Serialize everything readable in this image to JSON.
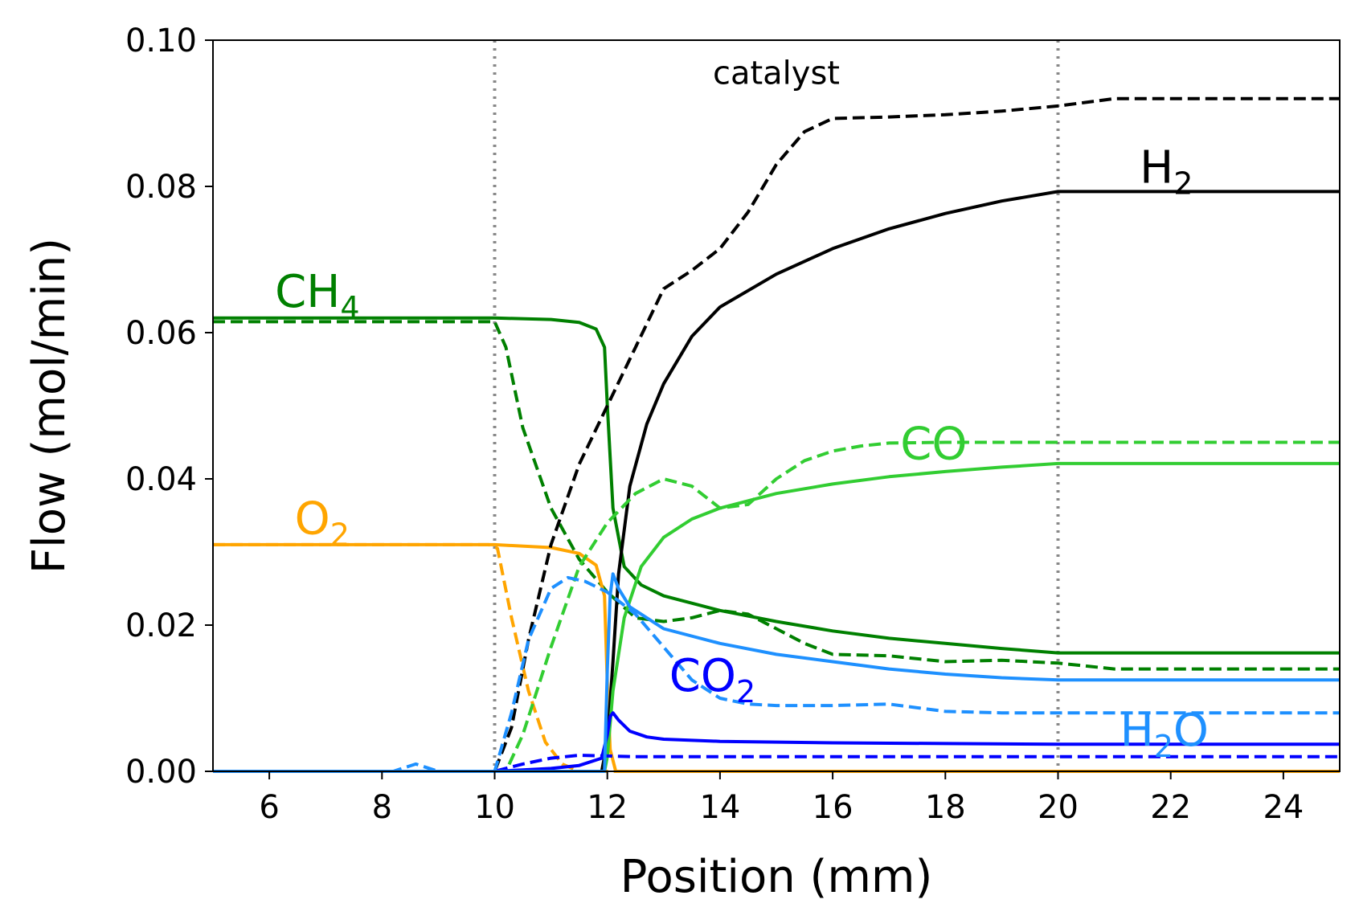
{
  "chart_data": {
    "type": "line",
    "xlabel": "Position (mm)",
    "ylabel": "Flow (mol/min)",
    "xlim": [
      5,
      25
    ],
    "ylim": [
      0,
      0.1
    ],
    "xticks": [
      6,
      8,
      10,
      12,
      14,
      16,
      18,
      20,
      22,
      24
    ],
    "yticks": [
      0.0,
      0.02,
      0.04,
      0.06,
      0.08,
      0.1
    ],
    "xtick_labels": [
      "6",
      "8",
      "10",
      "12",
      "14",
      "16",
      "18",
      "20",
      "22",
      "24"
    ],
    "ytick_labels": [
      "0.00",
      "0.02",
      "0.04",
      "0.06",
      "0.08",
      "0.10"
    ],
    "vlines": [
      10,
      20
    ],
    "region_label": {
      "text": "catalyst",
      "x": 15,
      "y": 0.094
    },
    "series": [
      {
        "name": "CH4 solid",
        "species": "CH4",
        "color": "#008000",
        "dash": "solid",
        "x": [
          5,
          10,
          11,
          11.5,
          11.8,
          11.95,
          12.0,
          12.1,
          12.3,
          12.6,
          13,
          14,
          15,
          16,
          17,
          18,
          19,
          20,
          25
        ],
        "y": [
          0.062,
          0.062,
          0.0618,
          0.0614,
          0.0605,
          0.058,
          0.05,
          0.036,
          0.028,
          0.0255,
          0.024,
          0.022,
          0.0205,
          0.0192,
          0.0182,
          0.0175,
          0.0168,
          0.0162,
          0.0162
        ]
      },
      {
        "name": "CH4 dashed",
        "species": "CH4",
        "color": "#008000",
        "dash": "dashed",
        "x": [
          5,
          10,
          10.2,
          10.5,
          11,
          11.5,
          12,
          12.5,
          13,
          13.5,
          14,
          14.5,
          15,
          15.5,
          16,
          17,
          18,
          19,
          20,
          21,
          22,
          25
        ],
        "y": [
          0.0615,
          0.0615,
          0.058,
          0.047,
          0.036,
          0.029,
          0.0245,
          0.021,
          0.0205,
          0.021,
          0.022,
          0.0215,
          0.0195,
          0.0175,
          0.016,
          0.0158,
          0.015,
          0.0152,
          0.0148,
          0.014,
          0.014,
          0.014
        ]
      },
      {
        "name": "O2 solid",
        "species": "O2",
        "color": "#ffa500",
        "dash": "solid",
        "x": [
          5,
          10,
          11,
          11.5,
          11.8,
          11.95,
          12.0,
          12.05,
          12.15,
          25
        ],
        "y": [
          0.031,
          0.031,
          0.0306,
          0.0298,
          0.0282,
          0.024,
          0.012,
          0.003,
          0.0,
          0.0
        ]
      },
      {
        "name": "O2 dashed",
        "species": "O2",
        "color": "#ffa500",
        "dash": "dashed",
        "x": [
          5,
          9.9,
          10.05,
          10.3,
          10.6,
          10.9,
          11.2,
          11.5,
          25
        ],
        "y": [
          0.031,
          0.031,
          0.0305,
          0.021,
          0.011,
          0.004,
          0.001,
          0.0,
          0.0
        ]
      },
      {
        "name": "H2 solid",
        "species": "H2",
        "color": "#000000",
        "dash": "solid",
        "x": [
          5,
          11.9,
          12.0,
          12.1,
          12.2,
          12.4,
          12.7,
          13,
          13.5,
          14,
          15,
          16,
          17,
          18,
          19,
          20,
          25
        ],
        "y": [
          0.0,
          0.0,
          0.004,
          0.015,
          0.027,
          0.039,
          0.0475,
          0.053,
          0.0595,
          0.0635,
          0.068,
          0.0715,
          0.0742,
          0.0763,
          0.078,
          0.0793,
          0.0793
        ]
      },
      {
        "name": "H2 dashed",
        "species": "H2",
        "color": "#000000",
        "dash": "dashed",
        "x": [
          5,
          10,
          10.3,
          10.6,
          11,
          11.5,
          12,
          12.5,
          13,
          13.5,
          14,
          14.5,
          15,
          15.5,
          16,
          17,
          18,
          19,
          20,
          21,
          22,
          25
        ],
        "y": [
          0.0,
          0.0,
          0.006,
          0.018,
          0.031,
          0.042,
          0.05,
          0.058,
          0.066,
          0.0685,
          0.0715,
          0.0765,
          0.083,
          0.0875,
          0.0893,
          0.0895,
          0.0898,
          0.0903,
          0.091,
          0.092,
          0.092,
          0.092
        ]
      },
      {
        "name": "CO solid",
        "species": "CO",
        "color": "#32cd32",
        "dash": "solid",
        "x": [
          5,
          11.95,
          12.0,
          12.1,
          12.3,
          12.6,
          13,
          13.5,
          14,
          15,
          16,
          17,
          18,
          19,
          20,
          25
        ],
        "y": [
          0.0,
          0.0,
          0.002,
          0.011,
          0.021,
          0.028,
          0.032,
          0.0345,
          0.036,
          0.038,
          0.0393,
          0.0403,
          0.041,
          0.0416,
          0.0421,
          0.0421
        ]
      },
      {
        "name": "CO dashed",
        "species": "CO",
        "color": "#32cd32",
        "dash": "dashed",
        "x": [
          5,
          10.2,
          10.5,
          11,
          11.5,
          12,
          12.5,
          13,
          13.5,
          14,
          14.5,
          15,
          15.5,
          16,
          16.5,
          17,
          18,
          20,
          25
        ],
        "y": [
          0.0,
          0.0,
          0.005,
          0.017,
          0.028,
          0.034,
          0.038,
          0.04,
          0.039,
          0.036,
          0.0365,
          0.04,
          0.0425,
          0.0438,
          0.0445,
          0.0449,
          0.045,
          0.045,
          0.045
        ]
      },
      {
        "name": "CO2 solid",
        "species": "CO2",
        "color": "#0000ff",
        "dash": "solid",
        "x": [
          5,
          10,
          10.5,
          11,
          11.5,
          11.9,
          12.0,
          12.05,
          12.1,
          12.2,
          12.4,
          12.7,
          13,
          14,
          16,
          18,
          20,
          25
        ],
        "y": [
          0.0,
          0.0,
          0.0002,
          0.0004,
          0.0008,
          0.0018,
          0.005,
          0.0075,
          0.008,
          0.007,
          0.0055,
          0.0047,
          0.0044,
          0.0041,
          0.0039,
          0.0038,
          0.0037,
          0.0037
        ]
      },
      {
        "name": "CO2 dashed",
        "species": "CO2",
        "color": "#0000ff",
        "dash": "dashed",
        "x": [
          5,
          10,
          10.5,
          11,
          11.5,
          12,
          12.5,
          13,
          25
        ],
        "y": [
          0.0,
          0.0,
          0.001,
          0.0018,
          0.0022,
          0.0021,
          0.002,
          0.002,
          0.002
        ]
      },
      {
        "name": "H2O solid",
        "species": "H2O",
        "color": "#1e90ff",
        "dash": "solid",
        "x": [
          5,
          11.95,
          12.0,
          12.05,
          12.1,
          12.2,
          12.4,
          12.7,
          13,
          14,
          15,
          16,
          17,
          18,
          19,
          20,
          25
        ],
        "y": [
          0.0,
          0.0,
          0.014,
          0.024,
          0.027,
          0.025,
          0.0225,
          0.021,
          0.0195,
          0.0175,
          0.016,
          0.015,
          0.014,
          0.0133,
          0.0128,
          0.0125,
          0.0125
        ]
      },
      {
        "name": "H2O dashed",
        "species": "H2O",
        "color": "#1e90ff",
        "dash": "dashed",
        "x": [
          5,
          8.2,
          8.6,
          9.0,
          9.4,
          10,
          10.3,
          10.6,
          11,
          11.3,
          11.6,
          12,
          12.5,
          13,
          13.5,
          14,
          14.5,
          15,
          16,
          17,
          18,
          19,
          20,
          25
        ],
        "y": [
          0.0,
          0.0,
          0.001,
          0.0,
          0.0,
          0.0,
          0.008,
          0.018,
          0.025,
          0.0265,
          0.026,
          0.0245,
          0.0215,
          0.017,
          0.0125,
          0.01,
          0.0092,
          0.009,
          0.009,
          0.0092,
          0.0082,
          0.008,
          0.008,
          0.008
        ]
      }
    ],
    "labels": [
      {
        "base": "CH",
        "sub": "4",
        "color": "#008000",
        "x": 6.1,
        "y": 0.0635
      },
      {
        "base": "O",
        "sub": "2",
        "color": "#ffa500",
        "x": 6.45,
        "y": 0.0325
      },
      {
        "base": "H",
        "sub": "2",
        "color": "#000000",
        "x": 21.45,
        "y": 0.0805
      },
      {
        "base": "CO",
        "sub": "",
        "color": "#32cd32",
        "x": 17.2,
        "y": 0.0427
      },
      {
        "base": "CO",
        "sub": "2",
        "color": "#0000ff",
        "x": 13.1,
        "y": 0.011
      },
      {
        "base": "H",
        "sub": "2",
        "tail": "O",
        "color": "#1e90ff",
        "x": 21.1,
        "y": 0.0035
      }
    ]
  }
}
